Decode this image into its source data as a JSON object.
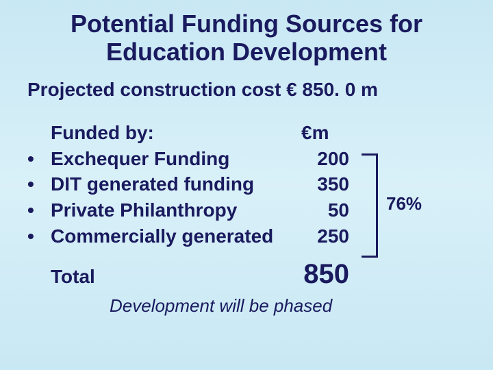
{
  "title_line1": "Potential Funding Sources for",
  "title_line2": "Education  Development",
  "subtitle": "Projected construction cost € 850. 0 m",
  "funded_by_label": "Funded by:",
  "value_header": "€m",
  "items": [
    {
      "label": "Exchequer Funding",
      "value": "200"
    },
    {
      "label": "DIT generated funding",
      "value": "350"
    },
    {
      "label": "Private Philanthropy",
      "value": "50"
    },
    {
      "label": "Commercially generated",
      "value": "250"
    }
  ],
  "total_label": "Total",
  "total_value": "850",
  "bracket_percent": "76%",
  "footnote": "Development will be phased",
  "colors": {
    "text": "#1a1a5e",
    "bg_top": "#c8e8f4",
    "bg_mid": "#d9f0f8"
  }
}
